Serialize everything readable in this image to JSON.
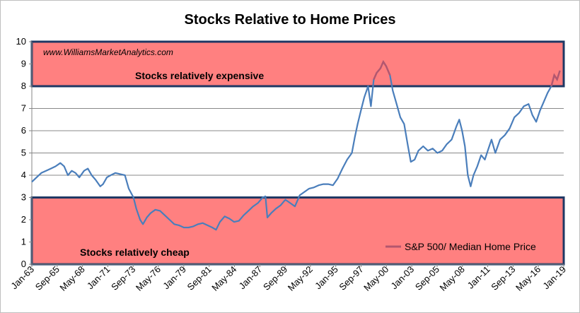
{
  "chart_data": {
    "type": "line",
    "title": "Stocks Relative to Home Prices",
    "xlabel": "",
    "ylabel": "",
    "ylim": [
      0,
      10
    ],
    "yticks": [
      "0",
      "1",
      "2",
      "3",
      "4",
      "5",
      "6",
      "7",
      "8",
      "9",
      "10"
    ],
    "xlim": [
      1963.0,
      2019.0
    ],
    "xticks": [
      {
        "label": "Jan-63",
        "x": 1963.0
      },
      {
        "label": "Sep-65",
        "x": 1965.67
      },
      {
        "label": "May-68",
        "x": 1968.33
      },
      {
        "label": "Jan-71",
        "x": 1971.0
      },
      {
        "label": "Sep-73",
        "x": 1973.67
      },
      {
        "label": "May-76",
        "x": 1976.33
      },
      {
        "label": "Jan-79",
        "x": 1979.0
      },
      {
        "label": "Sep-81",
        "x": 1981.67
      },
      {
        "label": "May-84",
        "x": 1984.33
      },
      {
        "label": "Jan-87",
        "x": 1987.0
      },
      {
        "label": "Sep-89",
        "x": 1989.67
      },
      {
        "label": "May-92",
        "x": 1992.33
      },
      {
        "label": "Jan-95",
        "x": 1995.0
      },
      {
        "label": "Sep-97",
        "x": 1997.67
      },
      {
        "label": "May-00",
        "x": 2000.33
      },
      {
        "label": "Jan-03",
        "x": 2003.0
      },
      {
        "label": "Sep-05",
        "x": 2005.67
      },
      {
        "label": "May-08",
        "x": 2008.33
      },
      {
        "label": "Jan-11",
        "x": 2011.0
      },
      {
        "label": "Sep-13",
        "x": 2013.67
      },
      {
        "label": "May-16",
        "x": 2016.33
      },
      {
        "label": "Jan-19",
        "x": 2019.0
      }
    ],
    "grid": true,
    "legend_position": "bottom-right",
    "watermark": "www.WilliamsMarketAnalytics.com",
    "zones": [
      {
        "label": "Stocks relatively expensive",
        "y_from": 8,
        "y_to": 10,
        "color": "#ff8080",
        "border": "#1f3864"
      },
      {
        "label": "Stocks relatively cheap",
        "y_from": 0,
        "y_to": 3,
        "color": "#ff8080",
        "border": "#1f3864"
      }
    ],
    "series": [
      {
        "name": "S&P 500/ Median Home Price",
        "color": "#4a7ebb",
        "highlight_color": "#b3566e",
        "points": [
          [
            1963.0,
            3.7
          ],
          [
            1963.5,
            3.9
          ],
          [
            1964.0,
            4.1
          ],
          [
            1964.5,
            4.2
          ],
          [
            1965.0,
            4.3
          ],
          [
            1965.5,
            4.4
          ],
          [
            1966.0,
            4.55
          ],
          [
            1966.4,
            4.4
          ],
          [
            1966.8,
            4.0
          ],
          [
            1967.2,
            4.2
          ],
          [
            1967.6,
            4.1
          ],
          [
            1968.0,
            3.9
          ],
          [
            1968.5,
            4.2
          ],
          [
            1968.9,
            4.3
          ],
          [
            1969.3,
            4.0
          ],
          [
            1969.7,
            3.8
          ],
          [
            1970.2,
            3.5
          ],
          [
            1970.5,
            3.6
          ],
          [
            1970.9,
            3.9
          ],
          [
            1971.3,
            4.0
          ],
          [
            1971.8,
            4.1
          ],
          [
            1972.3,
            4.05
          ],
          [
            1972.8,
            4.0
          ],
          [
            1973.2,
            3.4
          ],
          [
            1973.7,
            3.0
          ],
          [
            1974.0,
            2.5
          ],
          [
            1974.4,
            2.0
          ],
          [
            1974.7,
            1.8
          ],
          [
            1975.1,
            2.1
          ],
          [
            1975.5,
            2.3
          ],
          [
            1976.0,
            2.45
          ],
          [
            1976.5,
            2.4
          ],
          [
            1977.0,
            2.2
          ],
          [
            1977.5,
            2.0
          ],
          [
            1978.0,
            1.8
          ],
          [
            1978.5,
            1.75
          ],
          [
            1979.0,
            1.65
          ],
          [
            1979.5,
            1.65
          ],
          [
            1980.0,
            1.7
          ],
          [
            1980.5,
            1.8
          ],
          [
            1981.0,
            1.85
          ],
          [
            1981.5,
            1.75
          ],
          [
            1982.0,
            1.65
          ],
          [
            1982.4,
            1.55
          ],
          [
            1982.8,
            1.9
          ],
          [
            1983.3,
            2.15
          ],
          [
            1983.8,
            2.05
          ],
          [
            1984.3,
            1.9
          ],
          [
            1984.8,
            1.95
          ],
          [
            1985.3,
            2.2
          ],
          [
            1985.8,
            2.4
          ],
          [
            1986.3,
            2.6
          ],
          [
            1986.8,
            2.75
          ],
          [
            1987.3,
            3.0
          ],
          [
            1987.6,
            3.05
          ],
          [
            1987.8,
            2.1
          ],
          [
            1988.2,
            2.3
          ],
          [
            1988.7,
            2.5
          ],
          [
            1989.2,
            2.65
          ],
          [
            1989.7,
            2.9
          ],
          [
            1990.2,
            2.75
          ],
          [
            1990.7,
            2.6
          ],
          [
            1991.2,
            3.1
          ],
          [
            1991.7,
            3.25
          ],
          [
            1992.2,
            3.4
          ],
          [
            1992.7,
            3.45
          ],
          [
            1993.2,
            3.55
          ],
          [
            1993.7,
            3.6
          ],
          [
            1994.2,
            3.6
          ],
          [
            1994.7,
            3.55
          ],
          [
            1995.2,
            3.85
          ],
          [
            1995.7,
            4.3
          ],
          [
            1996.2,
            4.7
          ],
          [
            1996.7,
            5.0
          ],
          [
            1997.0,
            5.7
          ],
          [
            1997.3,
            6.3
          ],
          [
            1997.7,
            7.0
          ],
          [
            1998.0,
            7.5
          ],
          [
            1998.4,
            8.0
          ],
          [
            1998.7,
            7.1
          ],
          [
            1999.0,
            8.3
          ],
          [
            1999.3,
            8.6
          ],
          [
            1999.7,
            8.8
          ],
          [
            2000.0,
            9.1
          ],
          [
            2000.3,
            8.9
          ],
          [
            2000.7,
            8.5
          ],
          [
            2001.0,
            7.8
          ],
          [
            2001.4,
            7.2
          ],
          [
            2001.8,
            6.6
          ],
          [
            2002.2,
            6.3
          ],
          [
            2002.6,
            5.3
          ],
          [
            2002.9,
            4.6
          ],
          [
            2003.3,
            4.7
          ],
          [
            2003.7,
            5.1
          ],
          [
            2004.2,
            5.3
          ],
          [
            2004.7,
            5.1
          ],
          [
            2005.2,
            5.2
          ],
          [
            2005.7,
            5.0
          ],
          [
            2006.2,
            5.1
          ],
          [
            2006.7,
            5.4
          ],
          [
            2007.2,
            5.6
          ],
          [
            2007.7,
            6.2
          ],
          [
            2008.0,
            6.5
          ],
          [
            2008.3,
            6.0
          ],
          [
            2008.6,
            5.3
          ],
          [
            2008.9,
            4.0
          ],
          [
            2009.2,
            3.5
          ],
          [
            2009.5,
            4.0
          ],
          [
            2009.9,
            4.4
          ],
          [
            2010.3,
            4.9
          ],
          [
            2010.7,
            4.7
          ],
          [
            2011.0,
            5.1
          ],
          [
            2011.4,
            5.6
          ],
          [
            2011.8,
            5.0
          ],
          [
            2012.3,
            5.6
          ],
          [
            2012.8,
            5.8
          ],
          [
            2013.3,
            6.1
          ],
          [
            2013.8,
            6.6
          ],
          [
            2014.3,
            6.8
          ],
          [
            2014.8,
            7.1
          ],
          [
            2015.3,
            7.2
          ],
          [
            2015.7,
            6.7
          ],
          [
            2016.1,
            6.4
          ],
          [
            2016.5,
            6.9
          ],
          [
            2016.9,
            7.3
          ],
          [
            2017.3,
            7.7
          ],
          [
            2017.7,
            8.0
          ],
          [
            2018.0,
            8.5
          ],
          [
            2018.3,
            8.3
          ],
          [
            2018.6,
            8.7
          ]
        ]
      }
    ]
  }
}
